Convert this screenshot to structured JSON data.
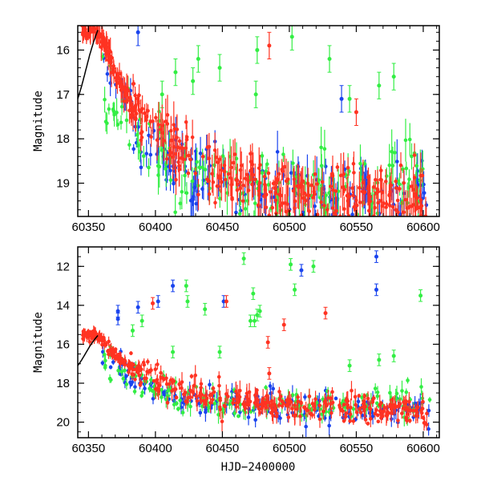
{
  "chart_data": [
    {
      "type": "scatter",
      "panel": "top",
      "xlabel": "",
      "ylabel": "Magnitude",
      "xlim": [
        60342,
        60612
      ],
      "ylim": [
        19.75,
        15.45
      ],
      "y_inverted": true,
      "x_ticks": [
        60350,
        60400,
        60450,
        60500,
        60550,
        60600
      ],
      "x_tick_labels": [
        "60350",
        "60400",
        "60450",
        "60500",
        "60550",
        "60600"
      ],
      "y_ticks": [
        16,
        17,
        18,
        19
      ],
      "y_tick_labels": [
        "16",
        "17",
        "18",
        "19"
      ],
      "grid": false,
      "legend": "none",
      "colors": {
        "green": "#33ee44",
        "blue": "#1a44ee",
        "red": "#ff3322",
        "model": "#000000"
      },
      "model_curve": {
        "color": "black",
        "x": [
          60342,
          60345,
          60348,
          60351,
          60354,
          60357
        ],
        "y": [
          17.1,
          16.8,
          16.45,
          16.1,
          15.8,
          15.55
        ]
      },
      "series": [
        {
          "color": "red",
          "trend": {
            "x": [
              60345,
              60350,
              60355,
              60360,
              60365,
              60370,
              60375,
              60380,
              60390,
              60400,
              60420,
              60440,
              60470,
              60500,
              60550,
              60605
            ],
            "y": [
              15.5,
              15.48,
              15.5,
              15.7,
              16.1,
              16.5,
              16.85,
              17.1,
              17.5,
              17.85,
              18.3,
              18.7,
              19.0,
              19.2,
              19.3,
              19.35
            ]
          },
          "outliers": [
            {
              "x": 60485,
              "y": 15.9
            },
            {
              "x": 60550,
              "y": 17.4
            }
          ]
        },
        {
          "color": "blue",
          "trend": {
            "x": [
              60360,
              60370,
              60380,
              60390,
              60400,
              60420,
              60450,
              60500,
              60550,
              60605
            ],
            "y": [
              16.5,
              17.2,
              17.5,
              17.9,
              18.3,
              18.7,
              19.1,
              19.3,
              19.4,
              19.4
            ]
          },
          "outliers": [
            {
              "x": 60387,
              "y": 15.6
            },
            {
              "x": 60539,
              "y": 17.1
            }
          ]
        },
        {
          "color": "green",
          "trend": {
            "x": [
              60360,
              60370,
              60380,
              60390,
              60400,
              60420,
              60450,
              60500,
              60550,
              60605
            ],
            "y": [
              16.6,
              17.3,
              17.6,
              18.0,
              18.3,
              18.7,
              19.0,
              19.1,
              19.0,
              18.8
            ]
          },
          "outliers": [
            {
              "x": 60405,
              "y": 17.0
            },
            {
              "x": 60415,
              "y": 16.5
            },
            {
              "x": 60428,
              "y": 16.7
            },
            {
              "x": 60432,
              "y": 16.2
            },
            {
              "x": 60448,
              "y": 16.4
            },
            {
              "x": 60475,
              "y": 17.0
            },
            {
              "x": 60476,
              "y": 16.0
            },
            {
              "x": 60502,
              "y": 15.7
            },
            {
              "x": 60530,
              "y": 16.2
            },
            {
              "x": 60545,
              "y": 17.1
            },
            {
              "x": 60567,
              "y": 16.8
            },
            {
              "x": 60578,
              "y": 16.6
            }
          ]
        }
      ]
    },
    {
      "type": "scatter",
      "panel": "bottom",
      "xlabel": "HJD−2400000",
      "ylabel": "Magnitude",
      "xlim": [
        60342,
        60612
      ],
      "ylim": [
        20.8,
        11.0
      ],
      "y_inverted": true,
      "x_ticks": [
        60350,
        60400,
        60450,
        60500,
        60550,
        60600
      ],
      "x_tick_labels": [
        "60350",
        "60400",
        "60450",
        "60500",
        "60550",
        "60600"
      ],
      "y_ticks": [
        12,
        14,
        16,
        18,
        20
      ],
      "y_tick_labels": [
        "12",
        "14",
        "16",
        "18",
        "20"
      ],
      "grid": false,
      "legend": "none",
      "model_curve": {
        "color": "black",
        "x": [
          60342,
          60345,
          60348,
          60351,
          60354,
          60357
        ],
        "y": [
          17.1,
          16.8,
          16.45,
          16.1,
          15.8,
          15.55
        ]
      },
      "series": [
        {
          "color": "red",
          "trend": {
            "x": [
              60345,
              60350,
              60355,
              60360,
              60365,
              60370,
              60375,
              60380,
              60390,
              60400,
              60420,
              60440,
              60470,
              60500,
              60550,
              60605
            ],
            "y": [
              15.5,
              15.48,
              15.5,
              15.7,
              16.1,
              16.5,
              16.85,
              17.1,
              17.5,
              17.85,
              18.3,
              18.7,
              19.0,
              19.2,
              19.3,
              19.35
            ]
          },
          "outliers": [
            {
              "x": 60398,
              "y": 13.9
            },
            {
              "x": 60453,
              "y": 13.8
            },
            {
              "x": 60484,
              "y": 15.9
            },
            {
              "x": 60485,
              "y": 17.5
            },
            {
              "x": 60496,
              "y": 15.0
            },
            {
              "x": 60527,
              "y": 14.4
            }
          ]
        },
        {
          "color": "blue",
          "trend": {
            "x": [
              60360,
              60370,
              60380,
              60390,
              60400,
              60420,
              60450,
              60500,
              60550,
              60605
            ],
            "y": [
              16.5,
              17.2,
              17.5,
              17.9,
              18.3,
              18.7,
              19.1,
              19.3,
              19.4,
              19.4
            ]
          },
          "outliers": [
            {
              "x": 60372,
              "y": 14.3
            },
            {
              "x": 60372,
              "y": 14.7
            },
            {
              "x": 60387,
              "y": 14.1
            },
            {
              "x": 60402,
              "y": 13.8
            },
            {
              "x": 60413,
              "y": 13.0
            },
            {
              "x": 60451,
              "y": 13.8
            },
            {
              "x": 60509,
              "y": 12.2
            },
            {
              "x": 60565,
              "y": 11.5
            },
            {
              "x": 60565,
              "y": 13.2
            }
          ]
        },
        {
          "color": "green",
          "trend": {
            "x": [
              60360,
              60370,
              60380,
              60390,
              60400,
              60420,
              60450,
              60500,
              60550,
              60605
            ],
            "y": [
              16.6,
              17.3,
              17.6,
              18.0,
              18.3,
              18.7,
              19.0,
              19.1,
              19.0,
              18.8
            ]
          },
          "outliers": [
            {
              "x": 60383,
              "y": 15.3
            },
            {
              "x": 60390,
              "y": 14.8
            },
            {
              "x": 60413,
              "y": 16.4
            },
            {
              "x": 60423,
              "y": 13.0
            },
            {
              "x": 60424,
              "y": 13.8
            },
            {
              "x": 60437,
              "y": 14.2
            },
            {
              "x": 60448,
              "y": 16.4
            },
            {
              "x": 60466,
              "y": 11.6
            },
            {
              "x": 60471,
              "y": 14.8
            },
            {
              "x": 60473,
              "y": 13.4
            },
            {
              "x": 60474,
              "y": 14.8
            },
            {
              "x": 60476,
              "y": 14.5
            },
            {
              "x": 60478,
              "y": 14.3
            },
            {
              "x": 60501,
              "y": 11.9
            },
            {
              "x": 60504,
              "y": 13.2
            },
            {
              "x": 60518,
              "y": 12.0
            },
            {
              "x": 60545,
              "y": 17.1
            },
            {
              "x": 60567,
              "y": 16.8
            },
            {
              "x": 60578,
              "y": 16.6
            },
            {
              "x": 60598,
              "y": 13.5
            }
          ]
        }
      ]
    }
  ]
}
